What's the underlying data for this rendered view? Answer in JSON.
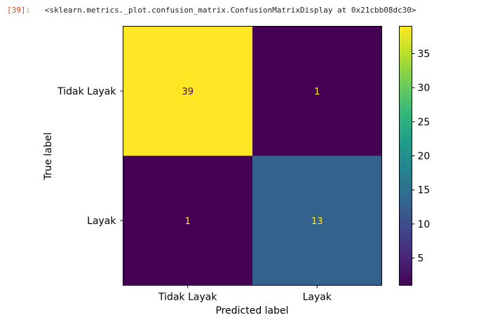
{
  "cell_output": {
    "prompt": "[39]:",
    "repr": "<sklearn.metrics._plot.confusion_matrix.ConfusionMatrixDisplay at 0x21cbb08dc30>"
  },
  "chart_data": {
    "type": "heatmap",
    "title": "",
    "xlabel": "Predicted label",
    "ylabel": "True label",
    "x_categories": [
      "Tidak Layak",
      "Layak"
    ],
    "y_categories": [
      "Tidak Layak",
      "Layak"
    ],
    "values": [
      [
        39,
        1
      ],
      [
        1,
        13
      ]
    ],
    "colormap": "viridis",
    "colorbar": {
      "range": [
        1,
        39
      ],
      "ticks": [
        5,
        10,
        15,
        20,
        25,
        30,
        35
      ]
    },
    "grid": false
  }
}
